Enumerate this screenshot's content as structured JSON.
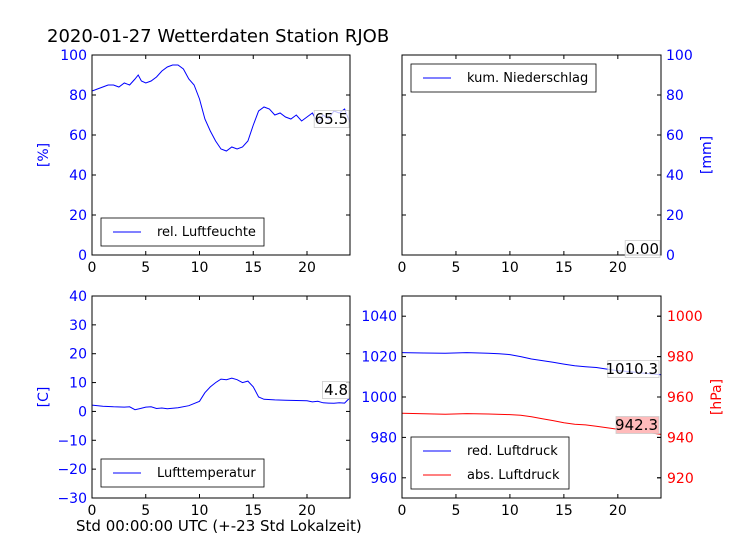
{
  "title": "2020-01-27 Wetterdaten Station RJOB",
  "xlabel": "Std 00:00:00 UTC (+-23 Std Lokalzeit)",
  "colors": {
    "blue": "#0000ff",
    "red": "#ff0000",
    "black": "#000000",
    "redbox": "#ffbbbb"
  },
  "chart_data": [
    {
      "type": "line",
      "id": "humidity",
      "ylabel": "[%]",
      "xlim": [
        0,
        24
      ],
      "ylim": [
        0,
        100
      ],
      "xticks": [
        "0",
        "5",
        "10",
        "15",
        "20"
      ],
      "yticks": [
        "0",
        "20",
        "40",
        "60",
        "80",
        "100"
      ],
      "legend": "lower-left",
      "current_label": "65.5",
      "series": [
        {
          "name": "rel. Luftfeuchte",
          "color": "#0000ff",
          "x": [
            0,
            0.5,
            1,
            1.5,
            2,
            2.5,
            3,
            3.5,
            4,
            4.3,
            4.6,
            5,
            5.5,
            6,
            6.5,
            7,
            7.5,
            8,
            8.5,
            9,
            9.5,
            10,
            10.5,
            11,
            11.5,
            12,
            12.5,
            13,
            13.5,
            14,
            14.5,
            15,
            15.5,
            16,
            16.5,
            17,
            17.5,
            18,
            18.5,
            19,
            19.5,
            20,
            20.5,
            21,
            21.5,
            22,
            22.5,
            23,
            23.5,
            24
          ],
          "y": [
            82,
            83,
            84,
            85,
            85,
            84,
            86,
            85,
            88,
            90,
            87,
            86,
            87,
            89,
            92,
            94,
            95,
            95,
            93,
            88,
            85,
            78,
            68,
            62,
            57,
            53,
            52,
            54,
            53,
            54,
            57,
            65,
            72,
            74,
            73,
            70,
            71,
            69,
            68,
            70,
            67,
            69,
            71,
            66,
            70,
            68,
            72,
            71,
            73,
            66
          ]
        }
      ]
    },
    {
      "type": "line",
      "id": "precipitation",
      "ylabel": "[mm]",
      "xlim": [
        0,
        24
      ],
      "ylim": [
        0,
        100
      ],
      "xticks": [
        "0",
        "5",
        "10",
        "15",
        "20"
      ],
      "yticks": [
        "0",
        "20",
        "40",
        "60",
        "80",
        "100"
      ],
      "legend": "upper-left",
      "current_label": "0.00",
      "series": [
        {
          "name": "kum. Niederschlag",
          "color": "#0000ff",
          "x": [
            0,
            24
          ],
          "y": [
            0,
            0
          ]
        }
      ]
    },
    {
      "type": "line",
      "id": "temperature",
      "ylabel": "[C]",
      "xlim": [
        0,
        24
      ],
      "ylim": [
        -30,
        40
      ],
      "xticks": [
        "0",
        "5",
        "10",
        "15",
        "20"
      ],
      "yticks": [
        "−30",
        "−20",
        "−10",
        "0",
        "10",
        "20",
        "30",
        "40"
      ],
      "legend": "lower-left",
      "current_label": "4.8",
      "series": [
        {
          "name": "Lufttemperatur",
          "color": "#0000ff",
          "x": [
            0,
            1,
            2,
            3,
            3.5,
            4,
            4.5,
            5,
            5.5,
            6,
            6.5,
            7,
            8,
            9,
            10,
            10.5,
            11,
            11.5,
            12,
            12.5,
            13,
            13.5,
            14,
            14.5,
            15,
            15.5,
            16,
            17,
            18,
            19,
            20,
            20.5,
            21,
            21.5,
            22,
            22.5,
            23,
            23.5,
            24
          ],
          "y": [
            2.2,
            1.8,
            1.6,
            1.5,
            1.6,
            0.6,
            1.0,
            1.5,
            1.6,
            1.0,
            1.2,
            0.9,
            1.3,
            2.0,
            3.5,
            6.5,
            8.5,
            10.0,
            11.2,
            11.0,
            11.5,
            11.0,
            10.0,
            10.5,
            8.5,
            5.0,
            4.2,
            4.0,
            3.9,
            3.8,
            3.7,
            3.3,
            3.5,
            3.0,
            2.9,
            2.8,
            3.0,
            2.9,
            4.8
          ]
        }
      ]
    },
    {
      "type": "line",
      "id": "pressure",
      "ylabel": "[hPa]",
      "xlim": [
        0,
        24
      ],
      "ylim": [
        950,
        1050
      ],
      "ylim_right": [
        910,
        1010
      ],
      "xticks": [
        "0",
        "5",
        "10",
        "15",
        "20"
      ],
      "yticks": [
        "960",
        "980",
        "1000",
        "1020",
        "1040"
      ],
      "yticks_right": [
        "920",
        "940",
        "960",
        "980",
        "1000"
      ],
      "legend": "lower-left",
      "current_label": "1010.3",
      "current_label_right": "942.3",
      "series": [
        {
          "name": "red. Luftdruck",
          "color": "#0000ff",
          "axis": "left",
          "x": [
            0,
            2,
            4,
            6,
            8,
            9,
            10,
            11,
            12,
            13,
            14,
            15,
            16,
            17,
            18,
            19,
            20,
            21,
            22,
            23,
            24
          ],
          "y": [
            1022,
            1021.8,
            1021.7,
            1022,
            1021.7,
            1021.4,
            1021,
            1020,
            1018.8,
            1018,
            1017.2,
            1016.3,
            1015.5,
            1015,
            1014.6,
            1013.8,
            1013,
            1012.6,
            1012,
            1011.5,
            1011
          ]
        },
        {
          "name": "abs. Luftdruck",
          "color": "#ff0000",
          "axis": "right",
          "x": [
            0,
            2,
            4,
            6,
            8,
            10,
            11,
            12,
            13,
            14,
            15,
            16,
            17,
            18,
            19,
            20,
            21,
            22,
            23,
            24
          ],
          "y": [
            952,
            951.7,
            951.5,
            951.8,
            951.6,
            951.3,
            951,
            950.2,
            949.2,
            948.3,
            947.3,
            946.5,
            946.2,
            945.5,
            944.8,
            944,
            943.6,
            943,
            942.3,
            941.5
          ]
        }
      ]
    }
  ]
}
